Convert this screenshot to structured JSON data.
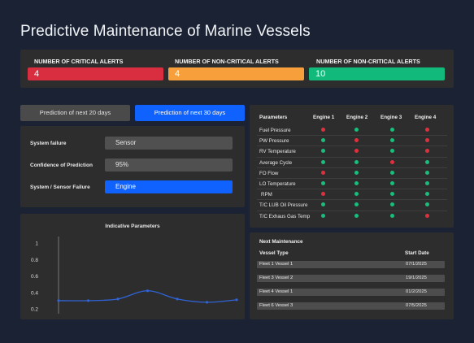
{
  "page": {
    "title": "Predictive Maintenance of Marine Vessels"
  },
  "alerts": [
    {
      "label": "NUMBER OF CRITICAL ALERTS",
      "value": "4",
      "color": "#d92e3f"
    },
    {
      "label": "NUMBER OF NON-CRITICAL ALERTS",
      "value": "4",
      "color": "#f7a03b"
    },
    {
      "label": "NUMBER OF NON-CRITICAL ALERTS",
      "value": "10",
      "color": "#11b97b"
    }
  ],
  "tabs": [
    {
      "label": "Prediction of next 20 days",
      "active": false
    },
    {
      "label": "Prediction of next 30 days",
      "active": true
    }
  ],
  "prediction": {
    "system_failure_label": "System failure",
    "system_failure_value": "Sensor",
    "confidence_label": "Confidence of Prediction",
    "confidence_value": "95%",
    "sensor_failure_label": "System / Sensor Failure",
    "sensor_failure_value": "Engine"
  },
  "chart_data": {
    "type": "line",
    "title": "Indicative Parameters",
    "xlabel": "",
    "ylabel": "",
    "y_ticks": [
      "1",
      "0.8",
      "0.6",
      "0.4",
      "0.2"
    ],
    "ylim": [
      0.2,
      1.0
    ],
    "series": [
      {
        "values": [
          0.3,
          0.3,
          0.32,
          0.42,
          0.32,
          0.28,
          0.31
        ],
        "color": "#2f64d8"
      }
    ]
  },
  "engines": {
    "header": [
      "Parameters",
      "Engine 1",
      "Engine 2",
      "Engine 3",
      "Engine 4"
    ],
    "rows": [
      {
        "label": "Fuel Pressure",
        "status": [
          "red",
          "green",
          "green",
          "red"
        ]
      },
      {
        "label": "PW Pressure",
        "status": [
          "green",
          "red",
          "green",
          "red"
        ]
      },
      {
        "label": "RV Temperature",
        "status": [
          "green",
          "red",
          "green",
          "red"
        ]
      },
      {
        "label": "Average Cycle",
        "status": [
          "green",
          "green",
          "red",
          "green"
        ]
      },
      {
        "label": "FO Flow",
        "status": [
          "red",
          "green",
          "green",
          "green"
        ]
      },
      {
        "label": "LO Temperature",
        "status": [
          "green",
          "green",
          "green",
          "green"
        ]
      },
      {
        "label": "RPM",
        "status": [
          "red",
          "green",
          "green",
          "green"
        ]
      },
      {
        "label": "T/C LUB Oil Pressure",
        "status": [
          "green",
          "green",
          "green",
          "green"
        ]
      },
      {
        "label": "T/C Exhaus Gas Temp",
        "status": [
          "green",
          "green",
          "green",
          "red"
        ]
      }
    ],
    "colors": {
      "red": "#e0303e",
      "green": "#19bd7c"
    }
  },
  "maintenance": {
    "title": "Next Maintenance",
    "col_vessel": "Vessel Type",
    "col_date": "Start Date",
    "rows": [
      {
        "vessel": "Fleet 1 Vessel 1",
        "date": "07/1/2025"
      },
      {
        "vessel": "Fleet 3  Vessel 2",
        "date": "19/1/2025"
      },
      {
        "vessel": "Fleet 4 Vessel 1",
        "date": "01/2/2025"
      },
      {
        "vessel": "Fleet 6 Vessel 3",
        "date": "07/5/2025"
      }
    ]
  }
}
